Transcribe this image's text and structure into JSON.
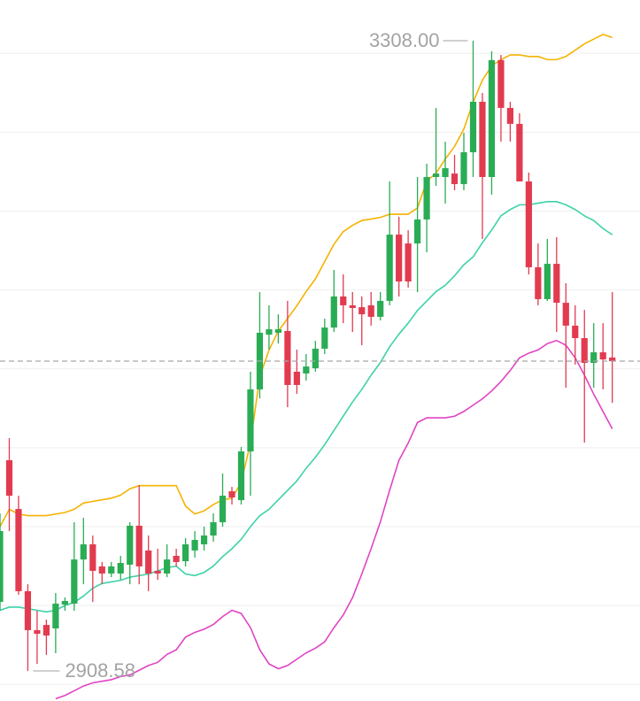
{
  "chart_data": {
    "type": "candlestick",
    "open": [
      2952.3,
      3042.1,
      3011.2,
      2959.1,
      2934.4,
      2937.7,
      2935.5,
      2950.6,
      2951.2,
      2979.2,
      2988.8,
      2974.8,
      2970.3,
      2970.3,
      2975.9,
      3000.6,
      2984.9,
      2972,
      2970.3,
      2981.5,
      2978.1,
      2984.9,
      2988.8,
      2994.4,
      3002.8,
      3022.4,
      3016.8,
      3047.7,
      3087,
      3121.7,
      3122.9,
      3124,
      3098.2,
      3097.1,
      3100.4,
      3112.8,
      3126.2,
      3145.9,
      3140.3,
      3139.1,
      3140.3,
      3133,
      3143.1,
      3185.1,
      3179.5,
      3179.5,
      3194.7,
      3221.6,
      3221.6,
      3223.8,
      3217.1,
      3237.3,
      3269.3,
      3221.6,
      3295.7,
      3265.4,
      3255.3,
      3218.8,
      3164.4,
      3144.2,
      3166.6,
      3141.9,
      3127.4,
      3119.5,
      3103.8,
      3110.5,
      3107.2
    ],
    "high": [
      3008.4,
      3056.1,
      3019.6,
      2963.5,
      2946.7,
      2941.1,
      2957.9,
      2955.1,
      3002.8,
      3005.6,
      2994.4,
      2977.6,
      2977.6,
      2981.5,
      3002.8,
      3026.4,
      2994.4,
      2986,
      2988.8,
      2986,
      2992.7,
      2997.2,
      3000,
      3008.4,
      3033.7,
      3025.2,
      3050.5,
      3098.2,
      3148.7,
      3140.3,
      3134.6,
      3143.1,
      3112.2,
      3109.4,
      3117.8,
      3131.8,
      3162.7,
      3159.9,
      3148.7,
      3145.9,
      3148.7,
      3148.7,
      3218.8,
      3196.4,
      3187.9,
      3221.6,
      3230,
      3265.4,
      3244,
      3235.6,
      3249.6,
      3308,
      3274.9,
      3301.3,
      3299,
      3269.3,
      3262,
      3224.4,
      3179.5,
      3182.3,
      3183.5,
      3154.3,
      3140.3,
      3137.4,
      3129,
      3129,
      3148.7
    ],
    "low": [
      2946.7,
      2997.2,
      2956.8,
      2908.58,
      2913,
      2918.7,
      2919.8,
      2946.7,
      2946.7,
      2963.5,
      2952.3,
      2963.5,
      2968,
      2966.3,
      2963.5,
      2963.5,
      2959.1,
      2966.3,
      2968,
      2974.8,
      2974.8,
      2980.4,
      2984.9,
      2990.5,
      3000,
      3014,
      3014,
      3019.6,
      3081.3,
      3112.2,
      3116.1,
      3075.7,
      3084.2,
      3092.6,
      3098.2,
      3109.4,
      3123.4,
      3129,
      3123.4,
      3115,
      3127.4,
      3130.7,
      3140.3,
      3145.9,
      3151.5,
      3148.7,
      3173.9,
      3216,
      3204.8,
      3213.2,
      3213.2,
      3221.6,
      3182.3,
      3210.4,
      3244,
      3244,
      3218.8,
      3159.9,
      3140.3,
      3143.1,
      3123.4,
      3088.1,
      3102.7,
      3053.3,
      3088.1,
      3087,
      3078.5
    ],
    "close": [
      2997.2,
      3019.6,
      2959.1,
      2934.4,
      2932.1,
      2931,
      2951.2,
      2952.9,
      2979.2,
      2988.8,
      2972,
      2970.3,
      2974.8,
      2977,
      3000.6,
      2974.8,
      2970.3,
      2970.3,
      2979.2,
      2977.6,
      2988.8,
      2991.6,
      2994.4,
      3002.8,
      3019.6,
      3018.5,
      3047.7,
      3087,
      3122.9,
      3125.1,
      3125.1,
      3089.8,
      3089.8,
      3101.5,
      3112.8,
      3126.2,
      3145.9,
      3140.3,
      3138.6,
      3134.6,
      3133,
      3143.1,
      3185.1,
      3155.4,
      3155.4,
      3194.7,
      3221.6,
      3223.8,
      3227.2,
      3217.1,
      3237.3,
      3269.3,
      3221.6,
      3295.7,
      3265.4,
      3255.3,
      3218.8,
      3164.4,
      3144.2,
      3166.6,
      3141.9,
      3127.4,
      3119.5,
      3103.8,
      3110.5,
      3106,
      3104.9
    ],
    "up_color": "#2aac55",
    "down_color": "#e23b50",
    "series": [
      {
        "color": "#f5b301",
        "values": [
          3000,
          3011,
          3008,
          3007,
          3007,
          3007,
          3008,
          3009,
          3011,
          3015,
          3016,
          3017,
          3018,
          3020,
          3024,
          3026,
          3026,
          3026,
          3026,
          3026,
          3013,
          3008,
          3010,
          3014,
          3017,
          3018,
          3028,
          3053,
          3095,
          3112,
          3124,
          3132,
          3140,
          3149,
          3157,
          3168,
          3179,
          3187,
          3191,
          3194,
          3195,
          3196,
          3198,
          3198,
          3198,
          3202,
          3219,
          3224,
          3233,
          3241,
          3252,
          3269,
          3283,
          3292,
          3296,
          3299,
          3299,
          3298,
          3298,
          3296,
          3296,
          3298,
          3302,
          3306,
          3309,
          3312,
          3310
        ]
      },
      {
        "color": "#3dd2a9",
        "values": [
          2947,
          2949,
          2949,
          2948,
          2947,
          2946,
          2947,
          2950,
          2952,
          2956,
          2961,
          2964,
          2965,
          2966,
          2968,
          2969,
          2970,
          2972,
          2974,
          2975,
          2970,
          2969,
          2971,
          2975,
          2981,
          2986,
          2992,
          3000,
          3007,
          3011,
          3017,
          3023,
          3029,
          3037,
          3044,
          3052,
          3061,
          3070,
          3079,
          3087,
          3096,
          3104,
          3114,
          3122,
          3129,
          3137,
          3143,
          3149,
          3153,
          3159,
          3166,
          3171,
          3180,
          3188,
          3197,
          3201,
          3204,
          3204,
          3205,
          3206,
          3206,
          3204,
          3201,
          3197,
          3194,
          3189,
          3185
        ]
      },
      {
        "color": "#e044c4",
        "values": [
          null,
          null,
          null,
          null,
          null,
          null,
          2891,
          2893,
          2896,
          2899,
          2901,
          2902,
          2903,
          2905,
          2906,
          2909,
          2912,
          2914,
          2919,
          2922,
          2930,
          2933,
          2935,
          2938,
          2943,
          2947,
          2945,
          2936,
          2922,
          2913,
          2910,
          2912,
          2916,
          2920,
          2923,
          2927,
          2936,
          2944,
          2955,
          2970,
          2986,
          3003,
          3023,
          3042,
          3053,
          3066,
          3069,
          3069,
          3069,
          3070,
          3073,
          3077,
          3081,
          3086,
          3092,
          3099,
          3107,
          3110,
          3112,
          3116,
          3118,
          3115,
          3107,
          3096,
          3084,
          3073,
          3062
        ]
      }
    ],
    "max_marker": {
      "value": 3308,
      "label": "3308.00"
    },
    "min_marker": {
      "value": 2908.58,
      "label": "2908.58"
    },
    "ylim": [
      2889.5,
      3333.8
    ],
    "yticks": [
      2900,
      2950,
      3000,
      3050,
      3100,
      3150,
      3200,
      3250,
      3300
    ],
    "grid": true
  }
}
